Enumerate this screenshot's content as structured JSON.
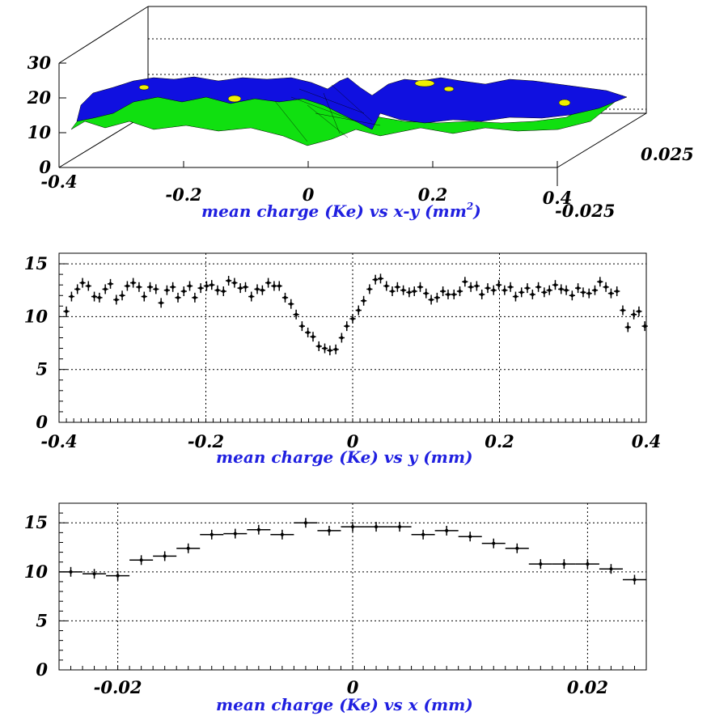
{
  "colors": {
    "title": "#2020e0",
    "surface_high": "#1010e0",
    "surface_mid": "#10e010",
    "surface_peak": "#f0f000",
    "marker": "#000000"
  },
  "chart_data": [
    {
      "type": "surface",
      "title_main": "mean charge (Ke) vs x-y (mm",
      "title_sup": "2",
      "title_end": ")",
      "xlim": [
        -0.4,
        0.4
      ],
      "ylim": [
        -0.025,
        0.025
      ],
      "zlim": [
        0,
        30
      ],
      "x_ticks": [
        "-0.4",
        "-0.2",
        "0",
        "0.2",
        "0.4"
      ],
      "y_ticks": [
        "-0.025",
        "0.025"
      ],
      "z_ticks": [
        "0",
        "10",
        "20",
        "30"
      ],
      "grid": true,
      "description_levels": {
        "low": "green",
        "mid": "blue",
        "peak": "yellow"
      }
    },
    {
      "type": "scatter",
      "title": "mean charge (Ke) vs y (mm)",
      "xlim": [
        -0.4,
        0.4
      ],
      "ylim": [
        0,
        16
      ],
      "x_ticks": [
        "-0.4",
        "-0.2",
        "0",
        "0.2",
        "0.4"
      ],
      "y_ticks": [
        "0",
        "5",
        "10",
        "15"
      ],
      "grid": true,
      "x": [
        -0.39,
        -0.383,
        -0.375,
        -0.368,
        -0.36,
        -0.352,
        -0.345,
        -0.337,
        -0.33,
        -0.322,
        -0.314,
        -0.307,
        -0.299,
        -0.291,
        -0.284,
        -0.276,
        -0.268,
        -0.261,
        -0.253,
        -0.245,
        -0.238,
        -0.23,
        -0.222,
        -0.215,
        -0.207,
        -0.199,
        -0.192,
        -0.184,
        -0.176,
        -0.169,
        -0.161,
        -0.153,
        -0.146,
        -0.138,
        -0.13,
        -0.123,
        -0.115,
        -0.107,
        -0.1,
        -0.092,
        -0.084,
        -0.077,
        -0.069,
        -0.061,
        -0.054,
        -0.046,
        -0.038,
        -0.031,
        -0.023,
        -0.015,
        -0.008,
        0,
        0.008,
        0.015,
        0.023,
        0.031,
        0.038,
        0.046,
        0.054,
        0.061,
        0.069,
        0.077,
        0.084,
        0.092,
        0.1,
        0.107,
        0.115,
        0.123,
        0.13,
        0.138,
        0.146,
        0.153,
        0.161,
        0.169,
        0.176,
        0.184,
        0.192,
        0.199,
        0.207,
        0.215,
        0.222,
        0.23,
        0.238,
        0.245,
        0.253,
        0.261,
        0.268,
        0.276,
        0.284,
        0.291,
        0.299,
        0.307,
        0.314,
        0.322,
        0.33,
        0.337,
        0.345,
        0.352,
        0.36,
        0.368,
        0.375,
        0.383,
        0.39,
        0.398
      ],
      "y": [
        10.5,
        11.9,
        12.6,
        13.2,
        12.9,
        11.9,
        11.8,
        12.6,
        13.1,
        11.6,
        12.0,
        12.9,
        13.2,
        12.8,
        11.9,
        12.8,
        12.6,
        11.3,
        12.5,
        12.8,
        11.8,
        12.4,
        12.9,
        11.8,
        12.7,
        12.9,
        13.0,
        12.5,
        12.4,
        13.4,
        13.2,
        12.7,
        12.8,
        11.9,
        12.6,
        12.5,
        13.2,
        12.9,
        12.9,
        11.8,
        11.2,
        10.2,
        9.1,
        8.5,
        8.1,
        7.2,
        7.0,
        6.8,
        6.9,
        8.0,
        9.1,
        9.8,
        10.6,
        11.5,
        12.6,
        13.5,
        13.6,
        12.9,
        12.4,
        12.8,
        12.5,
        12.3,
        12.4,
        12.8,
        12.2,
        11.6,
        11.8,
        12.4,
        12.1,
        12.1,
        12.4,
        13.3,
        12.8,
        12.9,
        12.1,
        12.7,
        12.5,
        13.0,
        12.5,
        12.8,
        11.9,
        12.3,
        12.7,
        12.1,
        12.8,
        12.3,
        12.5,
        13.0,
        12.6,
        12.5,
        12.0,
        12.7,
        12.3,
        12.2,
        12.5,
        13.3,
        12.8,
        12.2,
        12.4,
        10.6,
        9.0,
        10.2,
        10.5,
        9.1
      ],
      "x_error": 0.004
    },
    {
      "type": "scatter",
      "title": "mean charge (Ke) vs x (mm)",
      "xlim": [
        -0.025,
        0.025
      ],
      "ylim": [
        0,
        17
      ],
      "x_ticks": [
        "-0.02",
        "0",
        "0.02"
      ],
      "y_ticks": [
        "0",
        "5",
        "10",
        "15"
      ],
      "grid": true,
      "x": [
        -0.024,
        -0.022,
        -0.02,
        -0.018,
        -0.016,
        -0.014,
        -0.012,
        -0.01,
        -0.008,
        -0.006,
        -0.004,
        -0.002,
        0,
        0.002,
        0.004,
        0.006,
        0.008,
        0.01,
        0.012,
        0.014,
        0.016,
        0.018,
        0.02,
        0.022,
        0.024
      ],
      "y": [
        10.0,
        9.8,
        9.6,
        11.2,
        11.6,
        12.4,
        13.8,
        13.9,
        14.3,
        13.8,
        15.0,
        14.2,
        14.6,
        14.6,
        14.6,
        13.8,
        14.2,
        13.6,
        12.9,
        12.4,
        10.8,
        10.8,
        10.8,
        10.3,
        9.2
      ],
      "x_error": 0.001
    }
  ]
}
